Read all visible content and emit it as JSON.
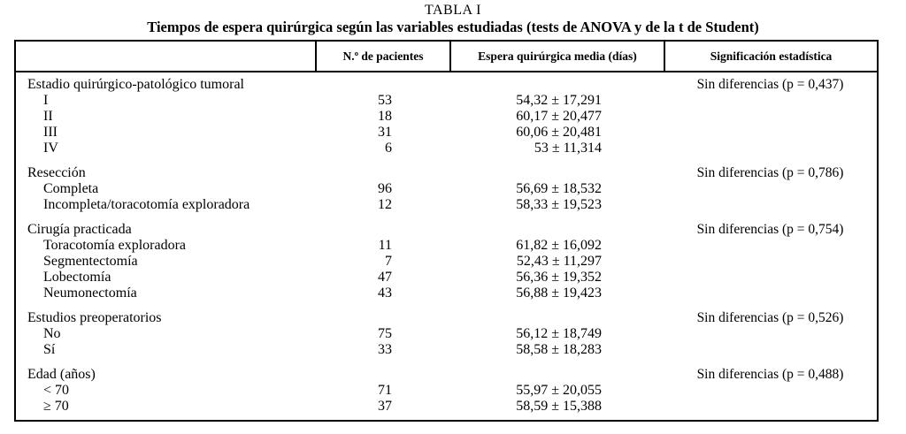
{
  "title": "TABLA I",
  "subtitle": "Tiempos de espera quirúrgica según las variables estudiadas (tests de ANOVA y de la t de Student)",
  "table": {
    "columns": [
      "",
      "N.º de pacientes",
      "Espera quirúrgica media (días)",
      "Significación estadística"
    ],
    "groups": [
      {
        "variable": "Estadio quirúrgico-patológico tumoral",
        "significance": "Sin diferencias (p = 0,437)",
        "rows": [
          {
            "label": "I",
            "n": "53",
            "mean": "54,32 ± 17,291"
          },
          {
            "label": "II",
            "n": "18",
            "mean": "60,17 ± 20,477"
          },
          {
            "label": "III",
            "n": "31",
            "mean": "60,06 ± 20,481"
          },
          {
            "label": "IV",
            "n": "6",
            "mean": "53 ± 11,314"
          }
        ]
      },
      {
        "variable": "Resección",
        "significance": "Sin diferencias (p = 0,786)",
        "rows": [
          {
            "label": "Completa",
            "n": "96",
            "mean": "56,69 ± 18,532"
          },
          {
            "label": "Incompleta/toracotomía exploradora",
            "n": "12",
            "mean": "58,33 ± 19,523"
          }
        ]
      },
      {
        "variable": "Cirugía practicada",
        "significance": "Sin diferencias (p = 0,754)",
        "rows": [
          {
            "label": "Toracotomía exploradora",
            "n": "11",
            "mean": "61,82 ± 16,092"
          },
          {
            "label": "Segmentectomía",
            "n": "7",
            "mean": "52,43 ± 11,297"
          },
          {
            "label": "Lobectomía",
            "n": "47",
            "mean": "56,36 ± 19,352"
          },
          {
            "label": "Neumonectomía",
            "n": "43",
            "mean": "56,88 ± 19,423"
          }
        ]
      },
      {
        "variable": "Estudios preoperatorios",
        "significance": "Sin diferencias (p = 0,526)",
        "rows": [
          {
            "label": "No",
            "n": "75",
            "mean": "56,12 ± 18,749"
          },
          {
            "label": "Sí",
            "n": "33",
            "mean": "58,58 ± 18,283"
          }
        ]
      },
      {
        "variable": "Edad (años)",
        "significance": "Sin diferencias (p = 0,488)",
        "rows": [
          {
            "label": "< 70",
            "n": "71",
            "mean": "55,97 ± 20,055"
          },
          {
            "label": "≥ 70",
            "n": "37",
            "mean": "58,59 ± 15,388"
          }
        ]
      }
    ]
  }
}
